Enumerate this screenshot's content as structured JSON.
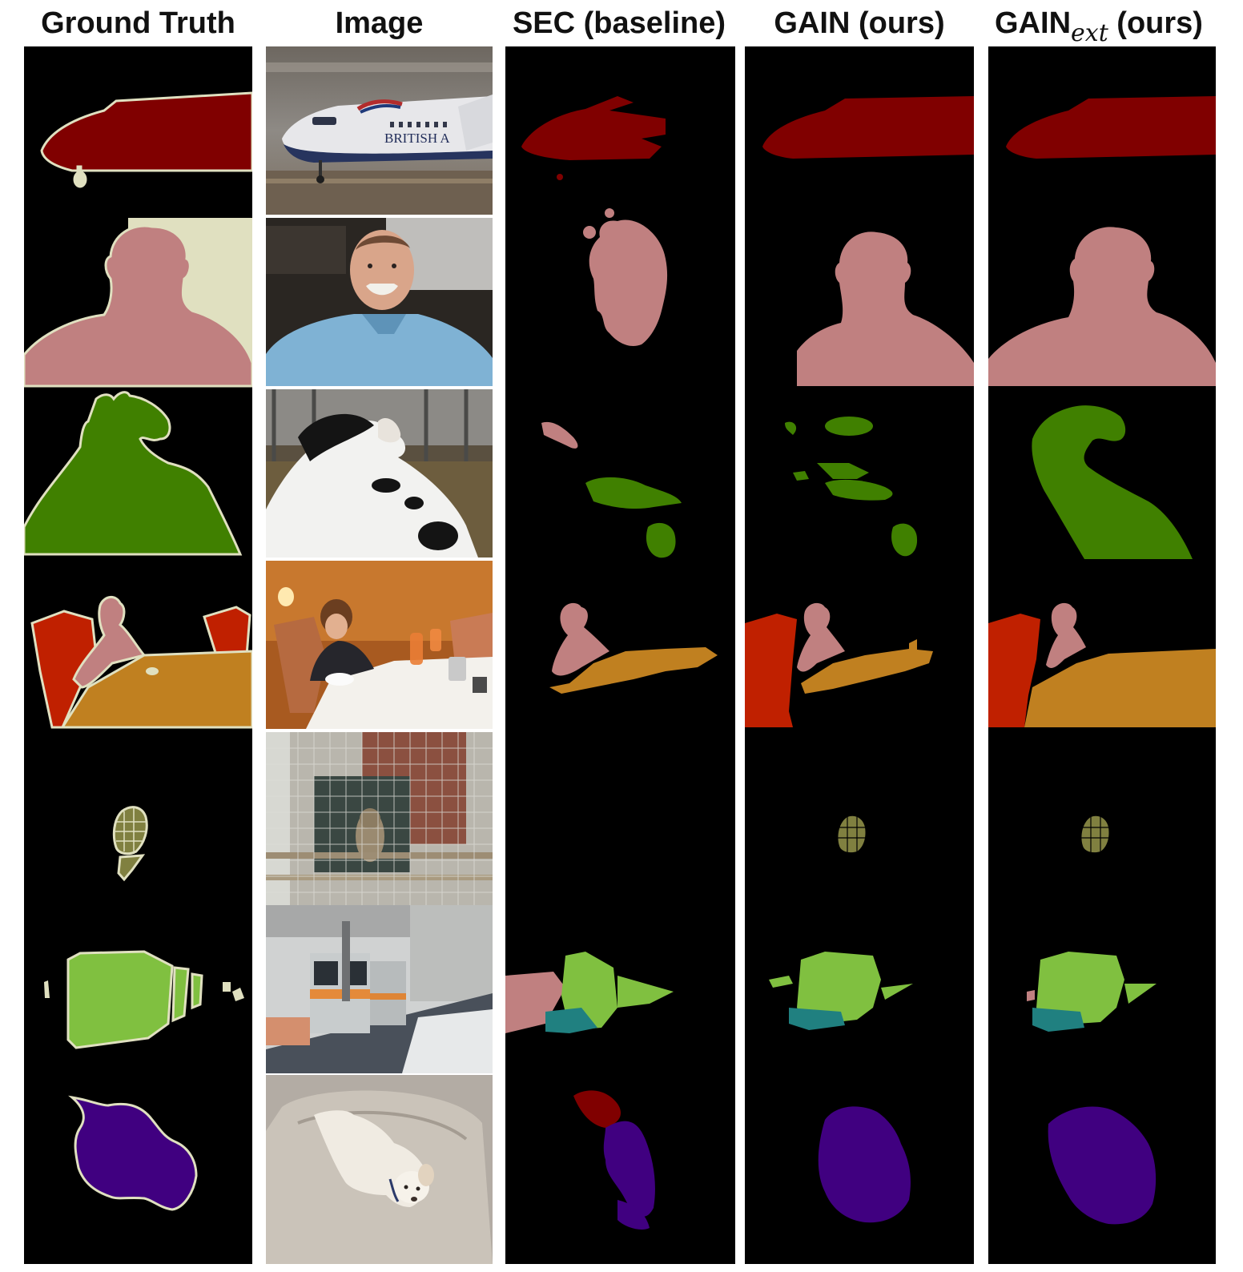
{
  "headers": {
    "gt": "Ground Truth",
    "image": "Image",
    "sec": "SEC (baseline)",
    "gain": "GAIN (ours)",
    "gain_ext_prefix": "GAIN",
    "gain_ext_sub": "ext",
    "gain_ext_suffix": " (ours)"
  },
  "rows": [
    {
      "scene": "airplane",
      "photo_text": "BRITISH A",
      "color": "#800000"
    },
    {
      "scene": "person",
      "color": "#c08080"
    },
    {
      "scene": "cow",
      "color": "#408000"
    },
    {
      "scene": "child-dining",
      "colors": {
        "chair": "#c02000",
        "person": "#c08080",
        "table": "#c08020"
      }
    },
    {
      "scene": "owl",
      "color": "#808040"
    },
    {
      "scene": "train",
      "colors": {
        "train": "#80c040",
        "front": "#208080",
        "person": "#c08080"
      }
    },
    {
      "scene": "dog",
      "color": "#400080"
    }
  ],
  "colors": {
    "background": "#000000",
    "void_outline": "#e0e0c0",
    "airplane": "#800000",
    "person": "#c08080",
    "cow": "#408000",
    "chair": "#c02000",
    "table": "#c08020",
    "bird": "#808040",
    "train": "#80c040",
    "tvmonitor": "#208080",
    "dog": "#400080"
  }
}
